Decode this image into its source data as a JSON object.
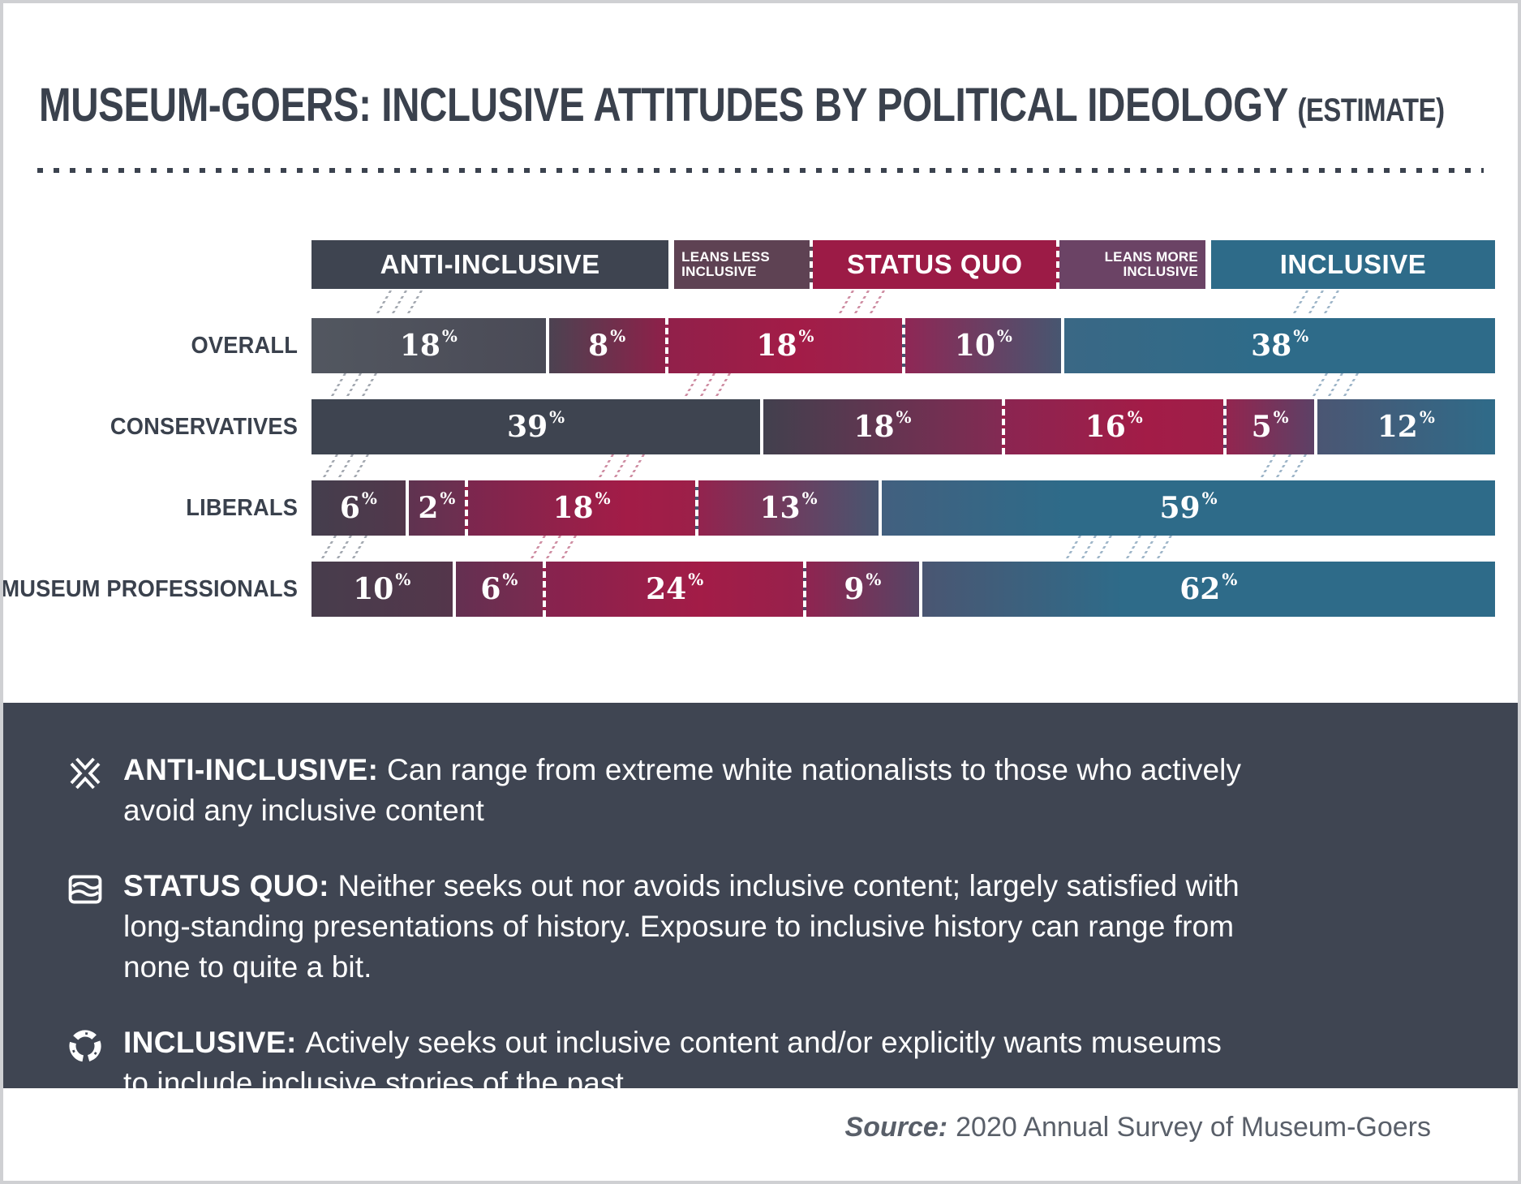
{
  "title": {
    "main": "MUSEUM-GOERS: INCLUSIVE ATTITUDES BY POLITICAL IDEOLOGY",
    "estimate": "(ESTIMATE)"
  },
  "palette": {
    "dark_slate": "#3e4450",
    "overall_gray": "#50555e",
    "crimson": "#a31c47",
    "maroon": "#7b2b51",
    "purple": "#6b4365",
    "blue_slate": "#475670",
    "teal": "#2e6b89",
    "panel_bg": "#3f4552",
    "text_dark": "#3a414d",
    "source_text": "#595f69",
    "connector_gray": "#a4a9b1",
    "connector_pink": "#cf8ea3",
    "connector_blue": "#9fb6c9"
  },
  "chart_data": {
    "type": "bar",
    "orientation": "horizontal",
    "stacked": true,
    "normalized_per_row": true,
    "title": "MUSEUM-GOERS: INCLUSIVE ATTITUDES BY POLITICAL IDEOLOGY (ESTIMATE)",
    "unit": "%",
    "categories": [
      "OVERALL",
      "CONSERVATIVES",
      "LIBERALS",
      "MUSEUM PROFESSIONALS"
    ],
    "series": [
      {
        "name": "Anti-Inclusive",
        "values": [
          18,
          39,
          6,
          10
        ]
      },
      {
        "name": "Leans Less Inclusive",
        "values": [
          8,
          18,
          2,
          6
        ]
      },
      {
        "name": "Status Quo",
        "values": [
          18,
          16,
          18,
          24
        ]
      },
      {
        "name": "Leans More Inclusive",
        "values": [
          10,
          5,
          13,
          9
        ]
      },
      {
        "name": "Inclusive",
        "values": [
          38,
          12,
          59,
          62
        ]
      }
    ],
    "legend_position": "top",
    "grid": false
  },
  "header": {
    "cells": [
      {
        "label": "ANTI-INCLUSIVE",
        "lines": null,
        "color": "#3e4450",
        "flex": 482
      },
      {
        "label": "LEANS LESS INCLUSIVE",
        "lines": [
          "LEANS LESS",
          "INCLUSIVE"
        ],
        "color": "#5e4253",
        "flex": 115
      },
      {
        "label": "STATUS QUO",
        "lines": null,
        "color": "#9c1b46",
        "flex": 238
      },
      {
        "label": "LEANS MORE INCLUSIVE",
        "lines": [
          "LEANS MORE",
          "INCLUSIVE"
        ],
        "color": "#6b4365",
        "flex": 132
      },
      {
        "label": "INCLUSIVE",
        "lines": null,
        "color": "#2e6b89",
        "flex": 483
      }
    ]
  },
  "rows": [
    {
      "label": "OVERALL",
      "segments": [
        {
          "value": 18,
          "bg": "linear-gradient(90deg,#525760,#4a4a56)"
        },
        {
          "value": 8,
          "bg": "linear-gradient(90deg,#4c4251,#8e2049)"
        },
        {
          "value": 18,
          "bg": "linear-gradient(90deg,#91204a,#a31c47 55%,#9a2450)"
        },
        {
          "value": 10,
          "bg": "linear-gradient(90deg,#8f2755,#475670)"
        },
        {
          "value": 38,
          "bg": "linear-gradient(90deg,#3a6885,#2e6b89 45%)"
        }
      ]
    },
    {
      "label": "CONSERVATIVES",
      "segments": [
        {
          "value": 39,
          "bg": "linear-gradient(90deg,#3e4450,#3e4450)"
        },
        {
          "value": 18,
          "bg": "linear-gradient(90deg,#42404e,#832a53)"
        },
        {
          "value": 16,
          "bg": "linear-gradient(90deg,#8b2551,#a31c47 65%,#9e1f49)"
        },
        {
          "value": 5,
          "bg": "linear-gradient(90deg,#93254f,#5c4166)"
        },
        {
          "value": 12,
          "bg": "linear-gradient(90deg,#4b5673,#2f6b89)"
        }
      ]
    },
    {
      "label": "LIBERALS",
      "segments": [
        {
          "value": 6,
          "bg": "linear-gradient(90deg,#443e4d,#52374b)"
        },
        {
          "value": 2,
          "bg": "linear-gradient(90deg,#5f3350,#6f2e50)"
        },
        {
          "value": 18,
          "bg": "linear-gradient(90deg,#7b274e,#a31c47 70%,#9c2049)"
        },
        {
          "value": 13,
          "bg": "linear-gradient(90deg,#93234e,#485670)"
        },
        {
          "value": 59,
          "bg": "linear-gradient(90deg,#42607f,#2e6b89 30%)"
        }
      ]
    },
    {
      "label": "MUSEUM PROFESSIONALS",
      "segments": [
        {
          "value": 10,
          "bg": "linear-gradient(90deg,#473d4c,#54364b)"
        },
        {
          "value": 6,
          "bg": "linear-gradient(90deg,#643051,#7b2a50)"
        },
        {
          "value": 24,
          "bg": "linear-gradient(90deg,#86234e,#a31c47 60%,#97214c)"
        },
        {
          "value": 9,
          "bg": "linear-gradient(90deg,#8f2450,#564565)"
        },
        {
          "value": 62,
          "bg": "linear-gradient(90deg,#4a5672,#2e6b89 35%)"
        }
      ]
    }
  ],
  "definitions": [
    {
      "icon": "x-icon",
      "term": "ANTI-INCLUSIVE:",
      "text": "Can range from extreme white nationalists to those who actively avoid any inclusive content"
    },
    {
      "icon": "waves-icon",
      "term": "STATUS QUO:",
      "text": "Neither seeks out nor avoids inclusive content; largely satisfied with long-standing presentations of history. Exposure to inclusive history can range from none to quite a bit."
    },
    {
      "icon": "cycle-icon",
      "term": "INCLUSIVE:",
      "text": "Actively seeks out inclusive content and/or explicitly wants museums to include inclusive stories of the past"
    }
  ],
  "source": {
    "label": "Source:",
    "text": "2020 Annual Survey of Museum-Goers"
  },
  "percent_sign": "%"
}
